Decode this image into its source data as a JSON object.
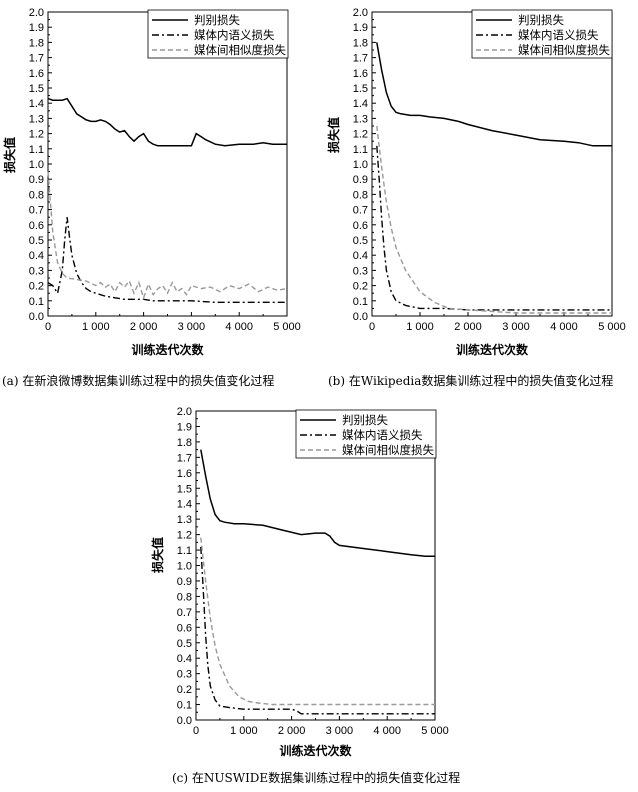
{
  "chart_data": [
    {
      "type": "line",
      "caption": "(a) 在新浪微博数据集训练过程中的损失值变化过程",
      "xlabel": "训练迭代次数",
      "ylabel": "损失值",
      "xlim": [
        0,
        5000
      ],
      "ylim": [
        0,
        2.0
      ],
      "xticks": [
        "0",
        "1 000",
        "2 000",
        "3 000",
        "4 000",
        "5 000"
      ],
      "yticks": [
        "0",
        "0.1",
        "0.2",
        "0.3",
        "0.4",
        "0.5",
        "0.6",
        "0.7",
        "0.8",
        "0.9",
        "1.0",
        "1.1",
        "1.2",
        "1.3",
        "1.4",
        "1.5",
        "1.6",
        "1.7",
        "1.8",
        "1.9",
        "2.0"
      ],
      "legend_position": "top-right",
      "grid": false,
      "series": [
        {
          "name": "判别损失",
          "style": "solid",
          "x": [
            0,
            100,
            200,
            300,
            400,
            500,
            600,
            700,
            800,
            900,
            1000,
            1100,
            1200,
            1300,
            1400,
            1500,
            1600,
            1700,
            1800,
            1900,
            2000,
            2100,
            2200,
            2300,
            2400,
            2500,
            2600,
            2700,
            2800,
            2900,
            3000,
            3100,
            3200,
            3300,
            3500,
            3700,
            4000,
            4300,
            4500,
            4700,
            5000
          ],
          "y": [
            1.43,
            1.42,
            1.42,
            1.42,
            1.43,
            1.38,
            1.33,
            1.31,
            1.29,
            1.28,
            1.28,
            1.29,
            1.28,
            1.26,
            1.23,
            1.21,
            1.22,
            1.18,
            1.15,
            1.18,
            1.2,
            1.15,
            1.13,
            1.12,
            1.12,
            1.12,
            1.12,
            1.12,
            1.12,
            1.12,
            1.12,
            1.2,
            1.18,
            1.16,
            1.13,
            1.12,
            1.13,
            1.13,
            1.14,
            1.13,
            1.13
          ]
        },
        {
          "name": "媒体内语义损失",
          "style": "dashdot",
          "x": [
            0,
            100,
            200,
            300,
            350,
            400,
            450,
            500,
            600,
            700,
            800,
            900,
            1000,
            1200,
            1400,
            1600,
            1800,
            2000,
            2200,
            2400,
            2600,
            2800,
            3000,
            3500,
            4000,
            4500,
            5000
          ],
          "y": [
            0.22,
            0.2,
            0.15,
            0.3,
            0.5,
            0.65,
            0.52,
            0.4,
            0.28,
            0.22,
            0.18,
            0.16,
            0.15,
            0.13,
            0.12,
            0.11,
            0.11,
            0.11,
            0.1,
            0.1,
            0.1,
            0.1,
            0.1,
            0.09,
            0.09,
            0.09,
            0.09
          ]
        },
        {
          "name": "媒体间相似度损失",
          "style": "dashed",
          "x": [
            0,
            100,
            200,
            300,
            400,
            600,
            800,
            1000,
            1100,
            1200,
            1300,
            1400,
            1500,
            1600,
            1700,
            1800,
            1900,
            2000,
            2100,
            2200,
            2300,
            2400,
            2500,
            2600,
            2700,
            2800,
            2900,
            3000,
            3200,
            3400,
            3600,
            3800,
            4000,
            4200,
            4400,
            4600,
            4800,
            5000
          ],
          "y": [
            0.95,
            0.55,
            0.35,
            0.28,
            0.25,
            0.24,
            0.23,
            0.2,
            0.22,
            0.19,
            0.21,
            0.16,
            0.22,
            0.19,
            0.23,
            0.15,
            0.22,
            0.12,
            0.21,
            0.14,
            0.18,
            0.2,
            0.15,
            0.22,
            0.16,
            0.18,
            0.14,
            0.2,
            0.18,
            0.19,
            0.16,
            0.2,
            0.18,
            0.21,
            0.16,
            0.19,
            0.17,
            0.18
          ]
        }
      ]
    },
    {
      "type": "line",
      "caption": "(b) 在Wikipedia数据集训练过程中的损失值变化过程",
      "xlabel": "训练迭代次数",
      "ylabel": "损失值",
      "xlim": [
        0,
        5000
      ],
      "ylim": [
        0,
        2.0
      ],
      "xticks": [
        "0",
        "1 000",
        "2 000",
        "3 000",
        "4 000",
        "5 000"
      ],
      "yticks": [
        "0",
        "0.1",
        "0.2",
        "0.3",
        "0.4",
        "0.5",
        "0.6",
        "0.7",
        "0.8",
        "0.9",
        "1.0",
        "1.1",
        "1.2",
        "1.3",
        "1.4",
        "1.5",
        "1.6",
        "1.7",
        "1.8",
        "1.9",
        "2.0"
      ],
      "legend_position": "top-right",
      "grid": false,
      "series": [
        {
          "name": "判别损失",
          "style": "solid",
          "x": [
            100,
            200,
            300,
            400,
            500,
            600,
            800,
            1000,
            1200,
            1500,
            1800,
            2000,
            2500,
            3000,
            3500,
            4000,
            4300,
            4600,
            4800,
            5000
          ],
          "y": [
            1.8,
            1.62,
            1.47,
            1.38,
            1.34,
            1.33,
            1.32,
            1.32,
            1.31,
            1.3,
            1.28,
            1.26,
            1.22,
            1.19,
            1.16,
            1.15,
            1.14,
            1.12,
            1.12,
            1.12
          ]
        },
        {
          "name": "媒体内语义损失",
          "style": "dashdot",
          "x": [
            100,
            150,
            200,
            250,
            300,
            400,
            500,
            700,
            1000,
            1500,
            2000,
            2500,
            3000,
            4000,
            5000
          ],
          "y": [
            1.12,
            0.9,
            0.65,
            0.45,
            0.3,
            0.16,
            0.1,
            0.07,
            0.05,
            0.05,
            0.04,
            0.04,
            0.04,
            0.04,
            0.04
          ]
        },
        {
          "name": "媒体间相似度损失",
          "style": "dashed",
          "x": [
            100,
            200,
            300,
            400,
            500,
            700,
            1000,
            1300,
            1600,
            2000,
            2500,
            3000,
            4000,
            5000
          ],
          "y": [
            1.25,
            0.98,
            0.75,
            0.58,
            0.45,
            0.3,
            0.16,
            0.09,
            0.05,
            0.04,
            0.03,
            0.02,
            0.02,
            0.02
          ]
        }
      ]
    },
    {
      "type": "line",
      "caption": "(c) 在NUSWIDE数据集训练过程中的损失值变化过程",
      "xlabel": "训练迭代次数",
      "ylabel": "损失值",
      "xlim": [
        0,
        5000
      ],
      "ylim": [
        0,
        2.0
      ],
      "xticks": [
        "0",
        "1 000",
        "2 000",
        "3 000",
        "4 000",
        "5 000"
      ],
      "yticks": [
        "0",
        "0.1",
        "0.2",
        "0.3",
        "0.4",
        "0.5",
        "0.6",
        "0.7",
        "0.8",
        "0.9",
        "1.0",
        "1.1",
        "1.2",
        "1.3",
        "1.4",
        "1.5",
        "1.6",
        "1.7",
        "1.8",
        "1.9",
        "2.0"
      ],
      "legend_position": "top-right",
      "grid": false,
      "series": [
        {
          "name": "判别损失",
          "style": "solid",
          "x": [
            100,
            200,
            300,
            400,
            500,
            600,
            800,
            1000,
            1400,
            1800,
            2200,
            2500,
            2700,
            2800,
            2900,
            3000,
            3500,
            4000,
            4500,
            4800,
            5000
          ],
          "y": [
            1.75,
            1.58,
            1.43,
            1.33,
            1.29,
            1.28,
            1.27,
            1.27,
            1.26,
            1.23,
            1.2,
            1.21,
            1.21,
            1.19,
            1.15,
            1.13,
            1.11,
            1.09,
            1.07,
            1.06,
            1.06
          ]
        },
        {
          "name": "媒体内语义损失",
          "style": "dashdot",
          "x": [
            100,
            150,
            200,
            250,
            300,
            400,
            500,
            700,
            1000,
            1500,
            2000,
            2100,
            2200,
            2500,
            3000,
            4000,
            5000
          ],
          "y": [
            1.12,
            0.85,
            0.55,
            0.35,
            0.22,
            0.13,
            0.09,
            0.08,
            0.07,
            0.07,
            0.07,
            0.06,
            0.04,
            0.04,
            0.04,
            0.04,
            0.04
          ]
        },
        {
          "name": "媒体间相似度损失",
          "style": "dashed",
          "x": [
            100,
            200,
            300,
            400,
            500,
            700,
            900,
            1100,
            1300,
            1600,
            2000,
            2500,
            3000,
            4000,
            5000
          ],
          "y": [
            1.18,
            0.9,
            0.66,
            0.48,
            0.36,
            0.22,
            0.15,
            0.12,
            0.11,
            0.1,
            0.1,
            0.1,
            0.1,
            0.1,
            0.1
          ]
        }
      ]
    }
  ]
}
